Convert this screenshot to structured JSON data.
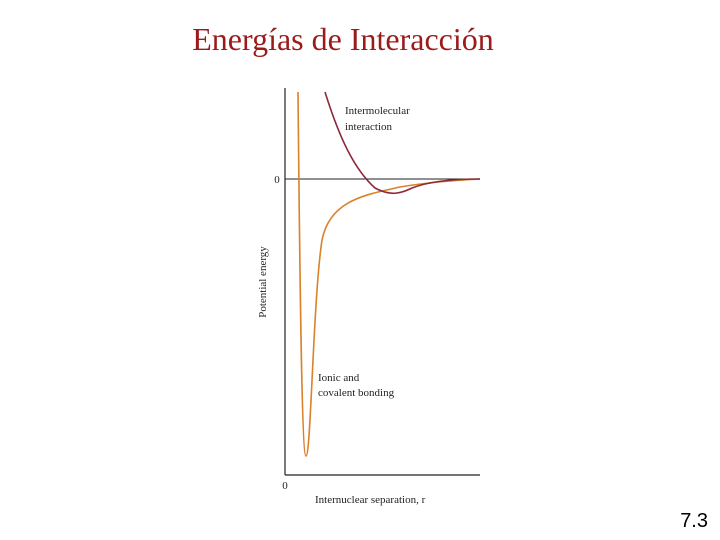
{
  "title": "Energías de Interacción",
  "diagram": {
    "y_axis_label": "Potential energy",
    "x_axis_label": "Internuclear separation, r",
    "y_zero_label": "0",
    "x_zero_label": "0",
    "curves": [
      {
        "label_lines": [
          "Intermolecular",
          "interaction"
        ]
      },
      {
        "label_lines": [
          "Ionic and",
          "covalent bonding"
        ]
      }
    ]
  },
  "page_number": "7.3"
}
